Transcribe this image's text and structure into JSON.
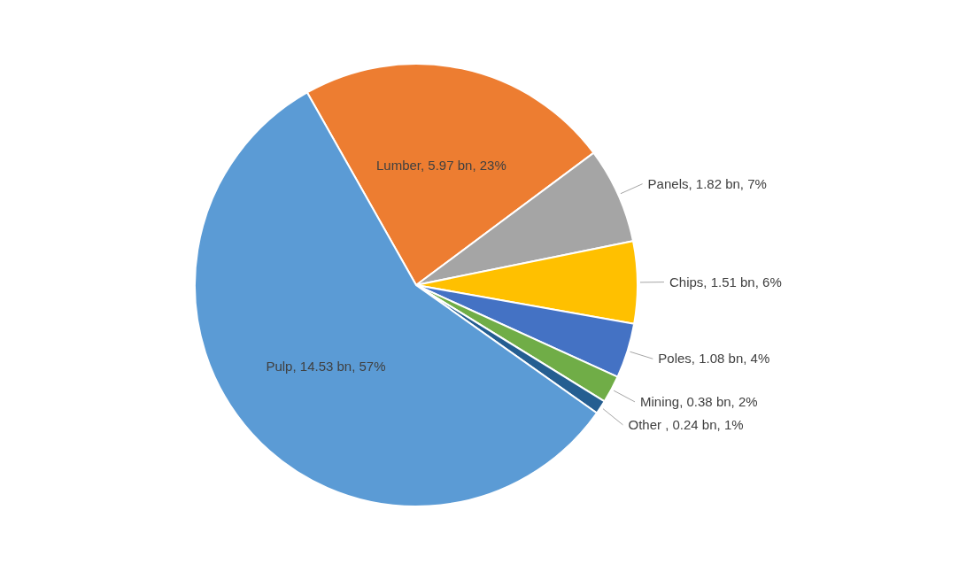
{
  "chart_data": {
    "type": "pie",
    "categories": [
      "Lumber",
      "Panels",
      "Chips",
      "Poles",
      "Mining",
      "Other ",
      "Pulp"
    ],
    "values": [
      23,
      7,
      6,
      4,
      2,
      1,
      57
    ],
    "colors": [
      "#ed7d31",
      "#a5a5a5",
      "#ffc000",
      "#4472c4",
      "#70ad47",
      "#255e91",
      "#5b9bd5"
    ],
    "value_labels": [
      "5.97 bn, 23%",
      "1.82 bn, 7%",
      "1.51 bn, 6%",
      "1.08 bn, 4%",
      "0.38 bn, 2%",
      "0.24 bn, 1%",
      "14.53 bn, 57%"
    ]
  }
}
